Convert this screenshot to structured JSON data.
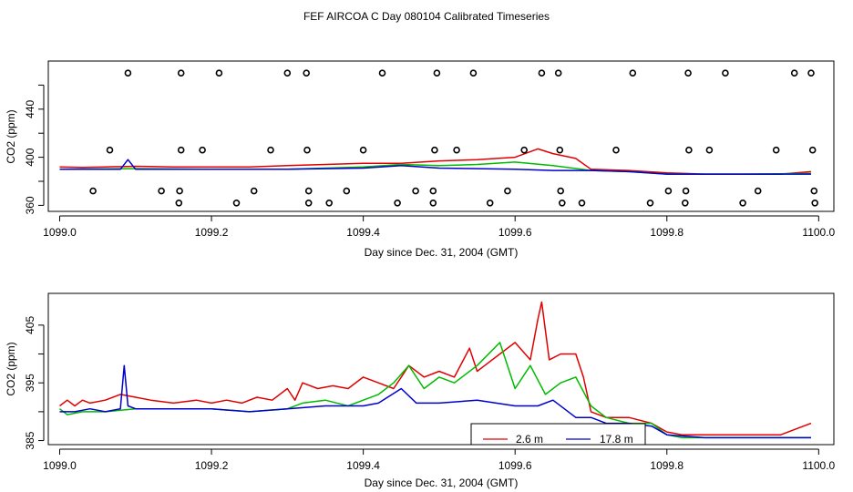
{
  "figure": {
    "title": "FEF AIRCOA C  Day 080104  Calibrated Timeseries"
  },
  "colors": {
    "line_2_6m": "#e00000",
    "line_17_8m": "#0000cc",
    "line_green": "#00bb00",
    "markers": "#000000"
  },
  "chart_data": [
    {
      "type": "line",
      "id": "top",
      "title": "",
      "xlabel": "Day since Dec. 31, 2004 (GMT)",
      "ylabel": "CO2 (ppm)",
      "xlim": [
        1098.985,
        1100.02
      ],
      "ylim": [
        355,
        480
      ],
      "x_ticks": [
        1099.0,
        1099.2,
        1099.4,
        1099.6,
        1099.8,
        1100.0
      ],
      "x_tick_labels": [
        "1099.0",
        "1099.2",
        "1099.4",
        "1099.6",
        "1099.8",
        "1100.0"
      ],
      "y_ticks": [
        360,
        400,
        440
      ],
      "y_tick_labels": [
        "360",
        "400",
        "440"
      ],
      "y_minor_ticks": [
        380,
        420,
        460
      ],
      "marker_series": [
        {
          "y": 470,
          "x": [
            1099.09,
            1099.16,
            1099.21,
            1099.3,
            1099.325,
            1099.425,
            1099.497,
            1099.545,
            1099.635,
            1099.657,
            1099.755,
            1099.828,
            1099.877,
            1099.968,
            1099.99
          ]
        },
        {
          "y": 406,
          "x": [
            1099.066,
            1099.16,
            1099.188,
            1099.278,
            1099.326,
            1099.4,
            1099.494,
            1099.523,
            1099.612,
            1099.659,
            1099.733,
            1099.829,
            1099.856,
            1099.944,
            1099.992
          ]
        },
        {
          "y": 372,
          "x": [
            1099.044,
            1099.134,
            1099.158,
            1099.256,
            1099.328,
            1099.378,
            1099.469,
            1099.492,
            1099.59,
            1099.66,
            1099.802,
            1099.825,
            1099.92,
            1099.994
          ]
        },
        {
          "y": 362,
          "x": [
            1099.157,
            1099.233,
            1099.328,
            1099.355,
            1099.445,
            1099.492,
            1099.567,
            1099.662,
            1099.688,
            1099.778,
            1099.824,
            1099.9,
            1099.995
          ]
        }
      ],
      "series": [
        {
          "name": "2.6 m",
          "color": "#e00000",
          "x": [
            1099.0,
            1099.03,
            1099.06,
            1099.1,
            1099.15,
            1099.2,
            1099.25,
            1099.3,
            1099.35,
            1099.4,
            1099.45,
            1099.5,
            1099.55,
            1099.6,
            1099.63,
            1099.65,
            1099.68,
            1099.7,
            1099.75,
            1099.8,
            1099.85,
            1099.9,
            1099.95,
            1099.99
          ],
          "y": [
            392,
            391.5,
            392,
            392.5,
            392,
            392,
            392,
            393,
            394,
            395,
            395,
            397,
            398,
            400,
            407,
            403,
            399,
            390,
            389,
            387,
            386,
            386,
            386,
            388
          ]
        },
        {
          "name": "green",
          "color": "#00bb00",
          "x": [
            1099.0,
            1099.1,
            1099.2,
            1099.3,
            1099.35,
            1099.4,
            1099.45,
            1099.5,
            1099.55,
            1099.6,
            1099.65,
            1099.7,
            1099.75,
            1099.8,
            1099.9,
            1099.99
          ],
          "y": [
            390,
            390.5,
            390,
            390,
            391,
            392,
            394,
            393,
            394,
            396,
            393,
            389,
            388,
            386,
            386,
            386.5
          ]
        },
        {
          "name": "17.8 m",
          "color": "#0000cc",
          "x": [
            1099.0,
            1099.05,
            1099.08,
            1099.09,
            1099.1,
            1099.2,
            1099.3,
            1099.4,
            1099.45,
            1099.5,
            1099.6,
            1099.65,
            1099.7,
            1099.75,
            1099.8,
            1099.9,
            1099.99
          ],
          "y": [
            390,
            390,
            390,
            398,
            390,
            390,
            390,
            391,
            393,
            391,
            390,
            389,
            389,
            388,
            386,
            386,
            386
          ]
        }
      ]
    },
    {
      "type": "line",
      "id": "bottom",
      "title": "",
      "xlabel": "Day since Dec. 31, 2004 (GMT)",
      "ylabel": "CO2 (ppm)",
      "xlim": [
        1098.985,
        1100.02
      ],
      "ylim": [
        384.3,
        410.5
      ],
      "x_ticks": [
        1099.0,
        1099.2,
        1099.4,
        1099.6,
        1099.8,
        1100.0
      ],
      "x_tick_labels": [
        "1099.0",
        "1099.2",
        "1099.4",
        "1099.6",
        "1099.8",
        "1100.0"
      ],
      "y_ticks": [
        385,
        395,
        405
      ],
      "y_tick_labels": [
        "385",
        "395",
        "405"
      ],
      "y_minor_ticks": [
        390,
        400
      ],
      "legend": {
        "position": "bottom-center",
        "entries": [
          "2.6 m",
          "17.8 m"
        ]
      },
      "series": [
        {
          "name": "2.6 m",
          "color": "#e00000",
          "x": [
            1099.0,
            1099.01,
            1099.02,
            1099.03,
            1099.04,
            1099.06,
            1099.08,
            1099.1,
            1099.12,
            1099.15,
            1099.18,
            1099.2,
            1099.22,
            1099.24,
            1099.26,
            1099.28,
            1099.3,
            1099.31,
            1099.32,
            1099.34,
            1099.36,
            1099.38,
            1099.4,
            1099.42,
            1099.44,
            1099.45,
            1099.46,
            1099.48,
            1099.5,
            1099.52,
            1099.54,
            1099.55,
            1099.56,
            1099.58,
            1099.6,
            1099.62,
            1099.63,
            1099.635,
            1099.645,
            1099.66,
            1099.68,
            1099.69,
            1099.7,
            1099.72,
            1099.75,
            1099.78,
            1099.8,
            1099.82,
            1099.85,
            1099.9,
            1099.95,
            1099.98,
            1099.99
          ],
          "y": [
            391,
            392,
            391,
            392,
            391.5,
            392,
            393,
            392.5,
            392,
            391.5,
            392,
            391.5,
            392,
            391.5,
            392.5,
            392,
            394,
            392,
            395,
            394,
            394.5,
            394,
            396,
            395,
            394,
            396,
            398,
            396,
            397,
            396,
            401,
            397,
            398,
            400,
            402,
            399,
            406,
            409,
            399,
            400,
            400,
            396,
            390,
            389,
            389,
            388,
            386.5,
            386,
            386,
            386,
            386,
            387.5,
            388
          ]
        },
        {
          "name": "green",
          "color": "#00bb00",
          "x": [
            1099.0,
            1099.01,
            1099.03,
            1099.06,
            1099.1,
            1099.15,
            1099.2,
            1099.25,
            1099.3,
            1099.32,
            1099.35,
            1099.38,
            1099.4,
            1099.42,
            1099.44,
            1099.46,
            1099.48,
            1099.5,
            1099.52,
            1099.55,
            1099.58,
            1099.6,
            1099.62,
            1099.64,
            1099.66,
            1099.68,
            1099.7,
            1099.72,
            1099.75,
            1099.78,
            1099.8,
            1099.82,
            1099.85,
            1099.9,
            1099.95,
            1099.99
          ],
          "y": [
            390.5,
            389.5,
            390,
            390,
            390.5,
            390.5,
            390.5,
            390,
            390.5,
            391.5,
            392,
            391,
            392,
            393,
            395,
            398,
            394,
            396,
            395,
            398,
            402,
            394,
            398,
            393,
            395,
            396,
            391,
            389,
            388,
            388,
            386,
            385.5,
            385.5,
            385.5,
            385.5,
            385.5
          ]
        },
        {
          "name": "17.8 m",
          "color": "#0000cc",
          "x": [
            1099.0,
            1099.02,
            1099.04,
            1099.06,
            1099.08,
            1099.085,
            1099.09,
            1099.1,
            1099.15,
            1099.2,
            1099.25,
            1099.3,
            1099.35,
            1099.4,
            1099.42,
            1099.45,
            1099.47,
            1099.5,
            1099.55,
            1099.6,
            1099.63,
            1099.65,
            1099.68,
            1099.7,
            1099.72,
            1099.75,
            1099.78,
            1099.8,
            1099.85,
            1099.9,
            1099.95,
            1099.99
          ],
          "y": [
            390,
            390,
            390.5,
            390,
            390.5,
            398,
            391,
            390.5,
            390.5,
            390.5,
            390,
            390.5,
            391,
            391,
            391.5,
            394,
            391.5,
            391.5,
            392,
            391,
            391,
            392,
            389,
            389,
            388,
            388,
            387.5,
            386,
            385.5,
            385.5,
            385.5,
            385.5
          ]
        }
      ]
    }
  ]
}
